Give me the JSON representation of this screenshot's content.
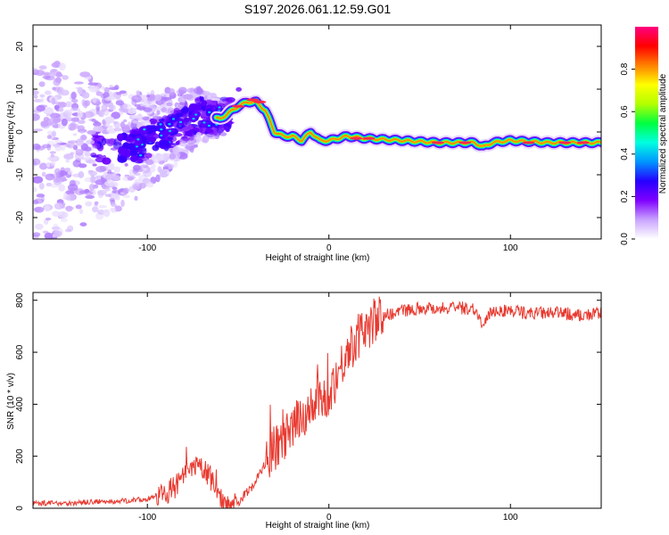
{
  "title": "S197.2026.061.12.59.G01",
  "chart_data": [
    {
      "type": "heatmap",
      "name": "spectrogram",
      "xlabel": "Height of straight line (km)",
      "ylabel": "Frequency (Hz)",
      "xlim": [
        -163,
        150
      ],
      "ylim": [
        -25,
        25
      ],
      "xticks": [
        -100,
        0,
        100
      ],
      "yticks": [
        -20,
        -10,
        0,
        10,
        20
      ],
      "colorbar": {
        "label": "Normalized spectral amplitude",
        "range": [
          0,
          1
        ],
        "ticks": [
          "0.0",
          "0.2",
          "0.4",
          "0.6",
          "0.8"
        ],
        "colors": [
          "#ffffff",
          "#c9a3ff",
          "#7f00ff",
          "#2600ff",
          "#0096ff",
          "#00ffe0",
          "#00ff40",
          "#b4ff00",
          "#ffff00",
          "#ff8000",
          "#ff0000",
          "#ff0080"
        ]
      },
      "ridge": {
        "x": [
          -110,
          -100,
          -90,
          -80,
          -70,
          -60,
          -50,
          -45,
          -40,
          -35,
          -30,
          -25,
          -20,
          -15,
          -10,
          -5,
          0,
          10,
          20,
          40,
          60,
          80,
          85,
          90,
          100,
          120,
          150
        ],
        "freq": [
          -4,
          -2,
          0,
          2,
          4,
          3,
          6,
          7,
          7,
          5,
          0,
          -1,
          -1,
          -2,
          0,
          -2,
          -2,
          -1,
          -1.5,
          -2,
          -2.5,
          -2.5,
          -3.5,
          -2.5,
          -2,
          -2.5,
          -2.5
        ]
      }
    },
    {
      "type": "line",
      "name": "snr",
      "xlabel": "Height of straight line (km)",
      "ylabel": "SNR (10 * v/v)",
      "xlim": [
        -163,
        150
      ],
      "ylim": [
        0,
        830
      ],
      "xticks": [
        -100,
        0,
        100
      ],
      "yticks": [
        0,
        200,
        400,
        600,
        800
      ],
      "color": "#e83a30",
      "x": [
        -163,
        -150,
        -140,
        -130,
        -120,
        -110,
        -100,
        -90,
        -85,
        -80,
        -75,
        -70,
        -65,
        -60,
        -55,
        -50,
        -45,
        -40,
        -35,
        -30,
        -25,
        -20,
        -15,
        -10,
        -5,
        0,
        5,
        10,
        15,
        20,
        25,
        30,
        40,
        50,
        60,
        70,
        80,
        85,
        90,
        100,
        110,
        120,
        130,
        140,
        150
      ],
      "values": [
        20,
        20,
        20,
        25,
        25,
        30,
        35,
        60,
        80,
        120,
        150,
        160,
        110,
        40,
        15,
        25,
        60,
        110,
        170,
        230,
        260,
        300,
        360,
        380,
        410,
        440,
        520,
        600,
        650,
        690,
        720,
        740,
        760,
        770,
        770,
        770,
        770,
        700,
        760,
        760,
        750,
        750,
        750,
        740,
        750
      ]
    }
  ]
}
